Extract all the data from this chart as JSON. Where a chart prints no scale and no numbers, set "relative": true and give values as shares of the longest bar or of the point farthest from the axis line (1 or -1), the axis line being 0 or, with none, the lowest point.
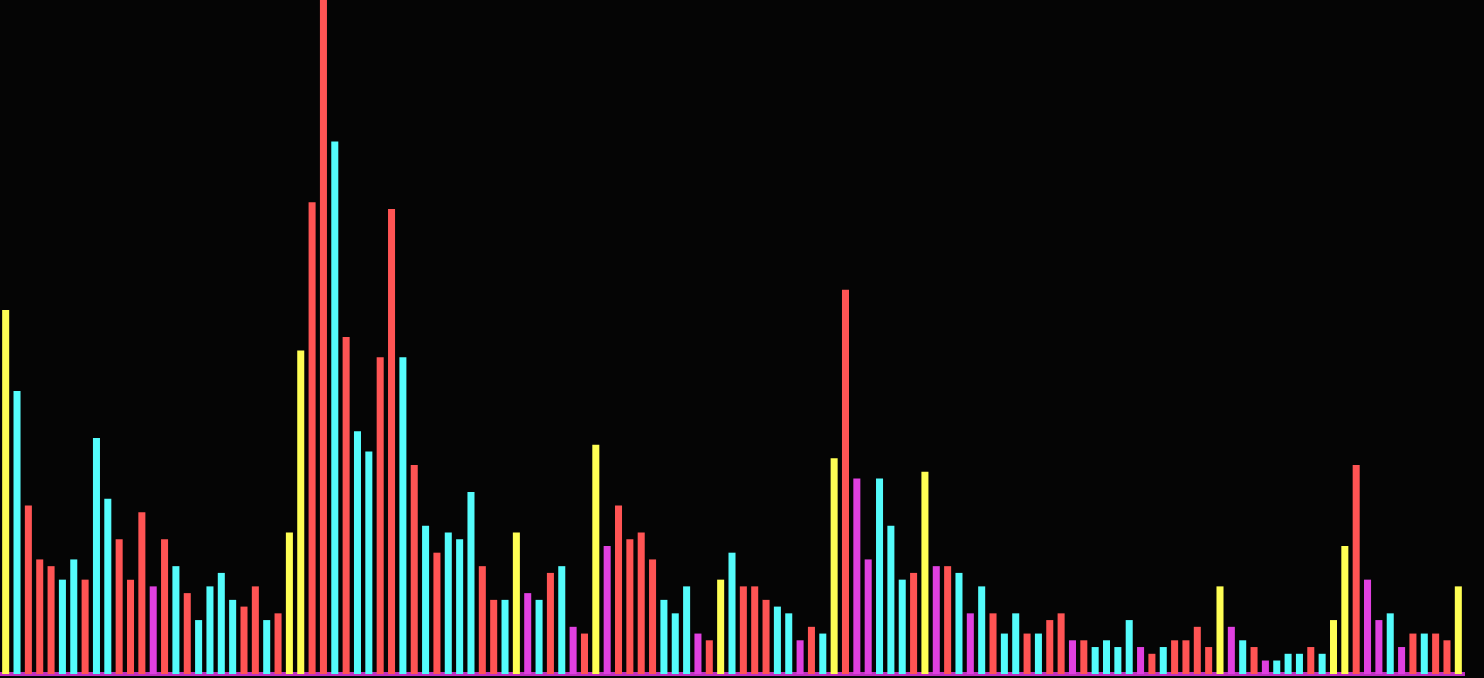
{
  "chart_data": {
    "type": "bar",
    "relative": true,
    "legend": false,
    "categories": [
      null,
      null,
      null,
      null,
      null,
      null,
      null,
      null,
      null,
      null,
      null,
      null,
      null,
      null,
      null,
      null,
      null,
      null,
      null,
      null,
      null,
      null,
      null,
      null,
      null,
      null,
      null,
      null,
      null,
      null,
      null,
      null,
      null,
      null,
      null,
      null,
      null,
      null,
      null,
      null,
      null,
      null,
      null,
      null,
      null,
      null,
      null,
      null,
      null,
      null,
      null,
      null,
      null,
      null,
      null,
      null,
      null,
      null,
      null,
      null,
      null,
      null,
      null,
      null,
      null,
      null,
      null,
      null,
      null,
      null,
      null,
      null,
      null,
      null,
      null,
      null,
      null,
      null,
      null,
      null,
      null,
      null,
      null,
      null,
      null,
      null,
      null,
      null,
      null,
      null,
      null,
      null,
      null,
      null,
      null,
      null,
      null,
      null,
      null,
      null,
      null,
      null,
      null,
      null,
      null,
      null,
      null,
      null,
      null,
      null,
      null,
      null,
      null,
      null,
      null,
      null,
      null,
      null,
      null,
      null,
      null,
      null,
      null,
      null,
      null,
      null,
      null,
      null,
      null
    ],
    "values": [
      0.54,
      0.42,
      0.25,
      0.17,
      0.16,
      0.14,
      0.17,
      0.14,
      0.35,
      0.26,
      0.2,
      0.14,
      0.24,
      0.13,
      0.2,
      0.16,
      0.12,
      0.08,
      0.13,
      0.15,
      0.11,
      0.1,
      0.13,
      0.08,
      0.09,
      0.21,
      0.48,
      0.7,
      1,
      0.79,
      0.5,
      0.36,
      0.33,
      0.47,
      0.69,
      0.47,
      0.31,
      0.22,
      0.18,
      0.21,
      0.2,
      0.27,
      0.16,
      0.11,
      0.11,
      0.21,
      0.12,
      0.11,
      0.15,
      0.16,
      0.07,
      0.06,
      0.34,
      0.19,
      0.25,
      0.2,
      0.21,
      0.17,
      0.11,
      0.09,
      0.13,
      0.06,
      0.05,
      0.14,
      0.18,
      0.13,
      0.13,
      0.11,
      0.1,
      0.09,
      0.05,
      0.07,
      0.06,
      0.32,
      0.57,
      0.29,
      0.17,
      0.29,
      0.22,
      0.14,
      0.15,
      0.3,
      0.16,
      0.16,
      0.15,
      0.09,
      0.13,
      0.09,
      0.06,
      0.09,
      0.06,
      0.06,
      0.08,
      0.09,
      0.05,
      0.05,
      0.04,
      0.05,
      0.04,
      0.08,
      0.04,
      0.03,
      0.04,
      0.05,
      0.05,
      0.07,
      0.04,
      0.13,
      0.07,
      0.05,
      0.04,
      0.02,
      0.02,
      0.03,
      0.03,
      0.04,
      0.03,
      0.08,
      0.19,
      0.31,
      0.14,
      0.08,
      0.09,
      0.04,
      0.06,
      0.06,
      0.06,
      0.05,
      0.13
    ],
    "colors": [
      "#ffff54",
      "#54fcfc",
      "#ff5454",
      "#ff5454",
      "#ff5454",
      "#54fcfc",
      "#54fcfc",
      "#ff5454",
      "#54fcfc",
      "#54fcfc",
      "#ff5454",
      "#ff5454",
      "#ff5454",
      "#e040e0",
      "#ff5454",
      "#54fcfc",
      "#ff5454",
      "#54fcfc",
      "#54fcfc",
      "#54fcfc",
      "#54fcfc",
      "#ff5454",
      "#ff5454",
      "#54fcfc",
      "#ff5454",
      "#ffff54",
      "#ffff54",
      "#ff5454",
      "#ff5454",
      "#54fcfc",
      "#ff5454",
      "#54fcfc",
      "#54fcfc",
      "#ff5454",
      "#ff5454",
      "#54fcfc",
      "#ff5454",
      "#54fcfc",
      "#ff5454",
      "#54fcfc",
      "#54fcfc",
      "#54fcfc",
      "#ff5454",
      "#ff5454",
      "#54fcfc",
      "#ffff54",
      "#e040e0",
      "#54fcfc",
      "#ff5454",
      "#54fcfc",
      "#e040e0",
      "#ff5454",
      "#ffff54",
      "#e040e0",
      "#ff5454",
      "#ff5454",
      "#ff5454",
      "#ff5454",
      "#54fcfc",
      "#54fcfc",
      "#54fcfc",
      "#e040e0",
      "#ff5454",
      "#ffff54",
      "#54fcfc",
      "#ff5454",
      "#ff5454",
      "#ff5454",
      "#54fcfc",
      "#54fcfc",
      "#e040e0",
      "#ff5454",
      "#54fcfc",
      "#ffff54",
      "#ff5454",
      "#e040e0",
      "#e040e0",
      "#54fcfc",
      "#54fcfc",
      "#54fcfc",
      "#ff5454",
      "#ffff54",
      "#e040e0",
      "#ff5454",
      "#54fcfc",
      "#e040e0",
      "#54fcfc",
      "#ff5454",
      "#54fcfc",
      "#54fcfc",
      "#ff5454",
      "#54fcfc",
      "#ff5454",
      "#ff5454",
      "#e040e0",
      "#ff5454",
      "#54fcfc",
      "#54fcfc",
      "#54fcfc",
      "#54fcfc",
      "#e040e0",
      "#ff5454",
      "#54fcfc",
      "#ff5454",
      "#ff5454",
      "#ff5454",
      "#ff5454",
      "#ffff54",
      "#e040e0",
      "#54fcfc",
      "#ff5454",
      "#e040e0",
      "#54fcfc",
      "#54fcfc",
      "#54fcfc",
      "#ff5454",
      "#54fcfc",
      "#ffff54",
      "#ffff54",
      "#ff5454",
      "#e040e0",
      "#e040e0",
      "#54fcfc",
      "#e040e0",
      "#ff5454",
      "#54fcfc",
      "#ff5454",
      "#ff5454",
      "#ffff54"
    ]
  }
}
